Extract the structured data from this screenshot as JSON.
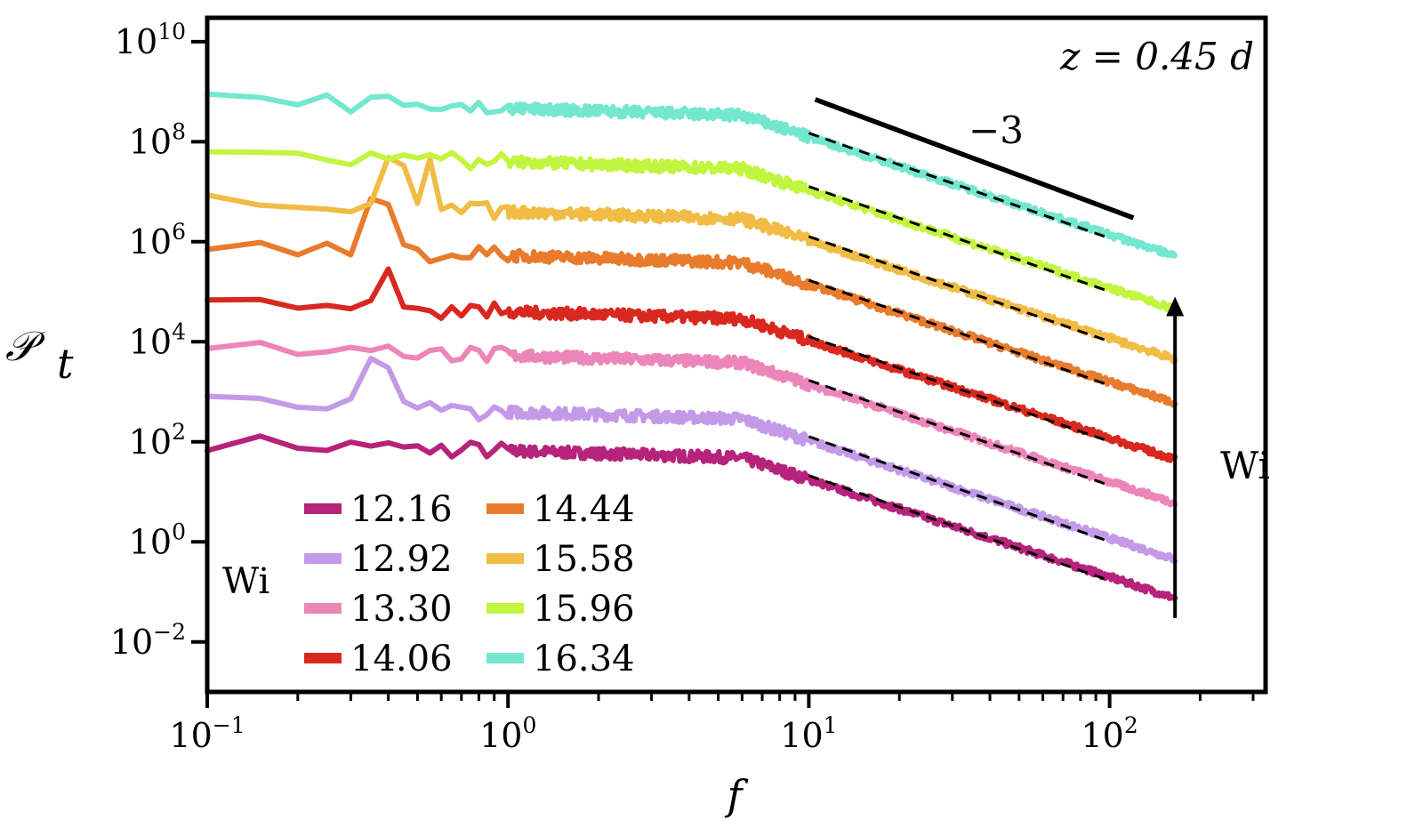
{
  "chart_data": {
    "type": "line",
    "xscale": "log",
    "yscale": "log",
    "xlim": [
      0.1,
      330
    ],
    "ylim": [
      0.001,
      30000000000
    ],
    "xlabel": "f",
    "ylabel_main": "𝒫",
    "ylabel_sub": "t",
    "x_ticks": [
      {
        "base": "10",
        "exp": "−1",
        "value": 0.1
      },
      {
        "base": "10",
        "exp": "0",
        "value": 1
      },
      {
        "base": "10",
        "exp": "1",
        "value": 10
      },
      {
        "base": "10",
        "exp": "2",
        "value": 100
      }
    ],
    "y_ticks": [
      {
        "base": "10",
        "exp": "−2",
        "value": 0.01
      },
      {
        "base": "10",
        "exp": "0",
        "value": 1
      },
      {
        "base": "10",
        "exp": "2",
        "value": 100
      },
      {
        "base": "10",
        "exp": "4",
        "value": 10000
      },
      {
        "base": "10",
        "exp": "6",
        "value": 1000000
      },
      {
        "base": "10",
        "exp": "8",
        "value": 100000000
      },
      {
        "base": "10",
        "exp": "10",
        "value": 10000000000
      }
    ],
    "annotation_position": "z = 0.45 d",
    "slope_label": "−3",
    "slope_line": {
      "x": [
        10.5,
        120
      ],
      "y": [
        700000000,
        3000000
      ]
    },
    "arrow_label": "Wi",
    "arrow_x": 165,
    "arrow_y": [
      0.03,
      80000
    ],
    "legend_title": "Wi",
    "fit_slope": -3,
    "fit_range": [
      10,
      100
    ],
    "series": [
      {
        "name": "12.16",
        "color": "#b5237a",
        "low_level": 100,
        "knee": 6,
        "high_level": 0.03
      },
      {
        "name": "12.92",
        "color": "#c39ae8",
        "low_level": 600,
        "knee": 6,
        "high_level": 0.2
      },
      {
        "name": "13.30",
        "color": "#ec86ba",
        "low_level": 8000,
        "knee": 6,
        "high_level": 3
      },
      {
        "name": "14.06",
        "color": "#d9281f",
        "low_level": 60000,
        "knee": 6,
        "high_level": 20
      },
      {
        "name": "14.44",
        "color": "#e87b2c",
        "low_level": 800000,
        "knee": 6,
        "high_level": 150
      },
      {
        "name": "15.58",
        "color": "#f0bc45",
        "low_level": 6000000,
        "knee": 6,
        "high_level": 3000
      },
      {
        "name": "15.96",
        "color": "#c2f540",
        "low_level": 60000000,
        "knee": 6,
        "high_level": 20000
      },
      {
        "name": "16.34",
        "color": "#74e7cf",
        "low_level": 700000000,
        "knee": 6,
        "high_level": 300000
      }
    ]
  }
}
